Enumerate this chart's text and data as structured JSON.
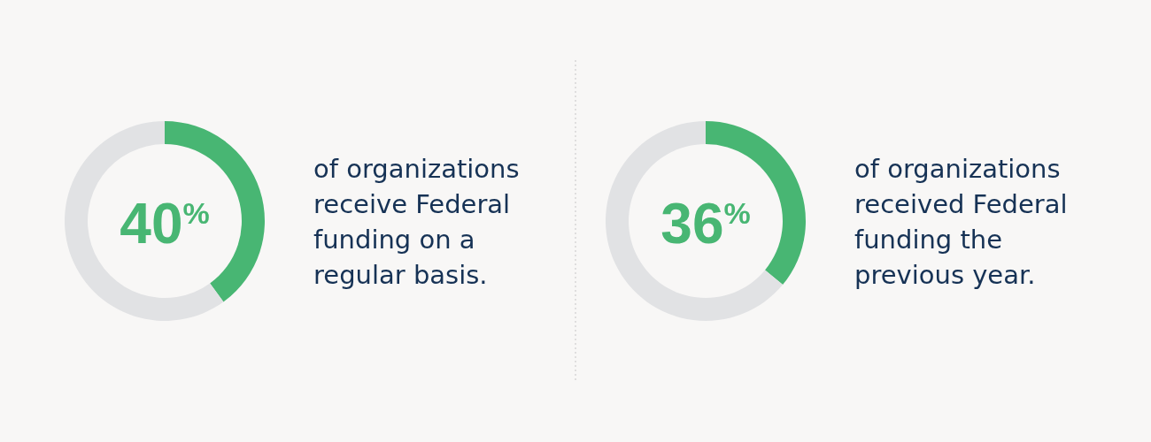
{
  "chart_data": [
    {
      "type": "donut",
      "categories": [
        null,
        null
      ],
      "values": [
        40,
        60
      ],
      "colors": [
        "#48b673",
        "#e1e2e4"
      ],
      "annotations": [
        "40$^{%}$",
        "of organizations receive Federal funding on a regular basis."
      ]
    },
    {
      "type": "donut",
      "categories": [
        null,
        null
      ],
      "values": [
        36,
        64
      ],
      "colors": [
        "#48b673",
        "#e1e2e4"
      ],
      "annotations": [
        "36$^{%}$",
        "of organizations received Federal funding the previous year."
      ]
    }
  ]
}
